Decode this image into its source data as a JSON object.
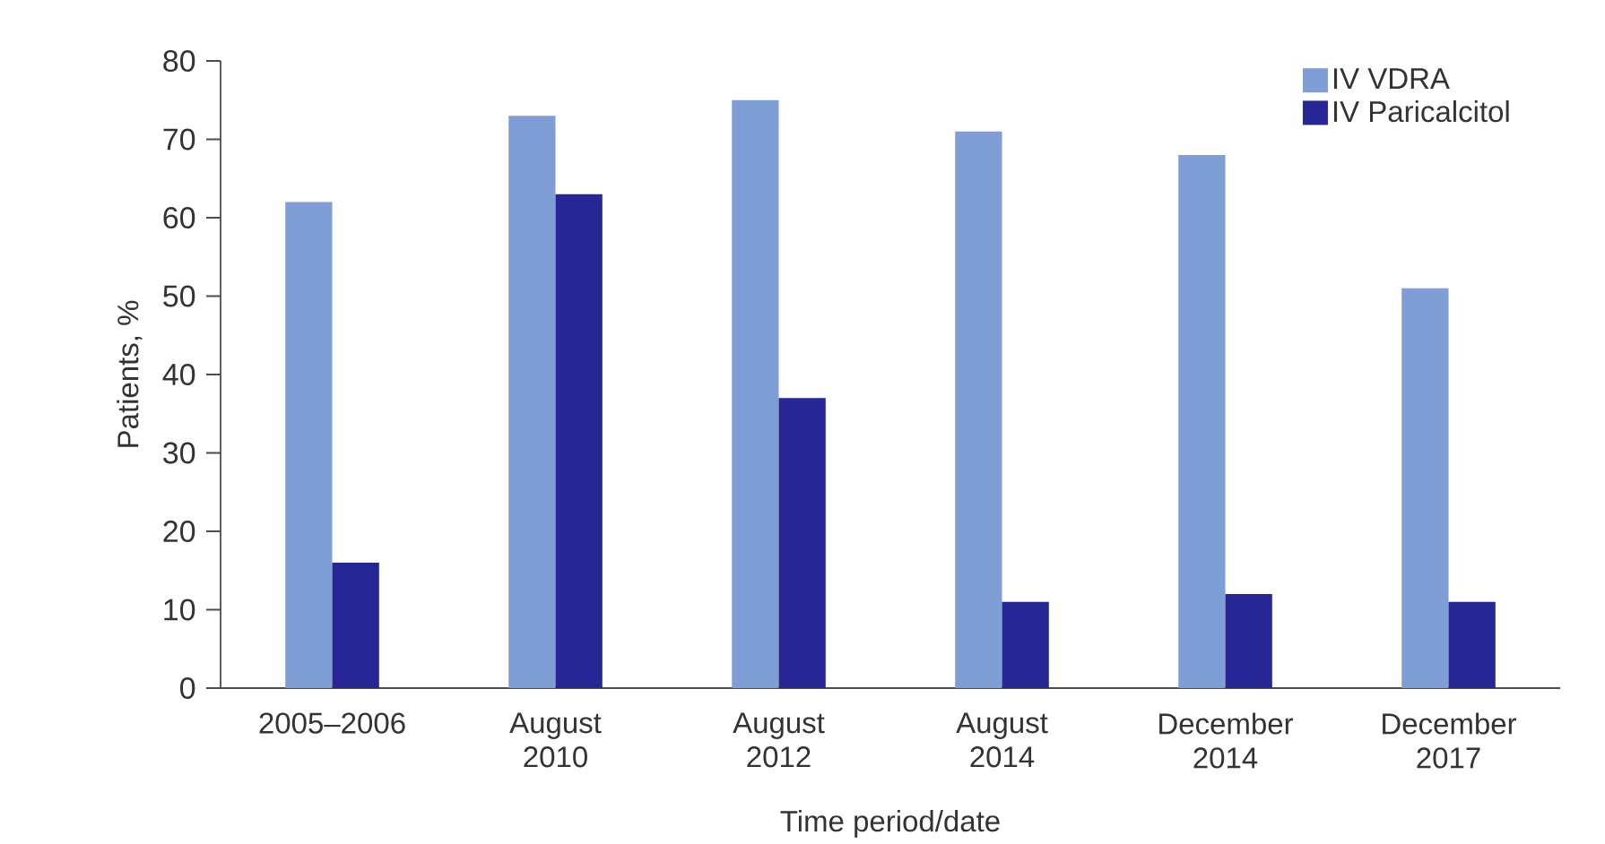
{
  "chart_data": {
    "type": "bar",
    "xlabel": "Time period/date",
    "ylabel": "Patients, %",
    "categories": [
      "2005–2006",
      "August 2010",
      "August 2012",
      "August 2014",
      "December 2014",
      "December 2017"
    ],
    "series": [
      {
        "name": "IV VDRA",
        "color": "#7f9ed6",
        "values": [
          62,
          73,
          75,
          71,
          68,
          51
        ]
      },
      {
        "name": "IV Paricalcitol",
        "color": "#262696",
        "values": [
          16,
          63,
          37,
          11,
          12,
          11
        ]
      }
    ],
    "ylim": [
      0,
      80
    ],
    "yticks": [
      0,
      10,
      20,
      30,
      40,
      50,
      60,
      70,
      80
    ],
    "legend": "top right"
  }
}
